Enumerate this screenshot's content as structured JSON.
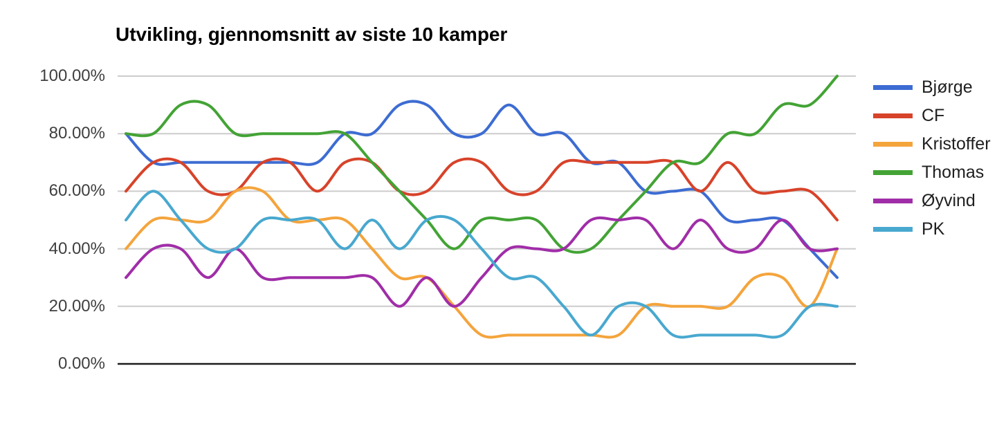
{
  "chart_data": {
    "type": "line",
    "curve": "smooth",
    "title": "Utvikling, gjennomsnitt av siste 10 kamper",
    "xlabel": "",
    "ylabel": "",
    "ylim": [
      0,
      100
    ],
    "grid": true,
    "legend_position": "right",
    "x_axis": {
      "labels_visible": false,
      "points": 27
    },
    "y_ticks": [
      "100.00%",
      "80.00%",
      "60.00%",
      "40.00%",
      "20.00%",
      "0.00%"
    ],
    "colors": {
      "gridline": "#cccccc",
      "axis_line": "#1c1c1c",
      "tick_label": "#3f3f3f",
      "legend_label": "#1f1f1f",
      "title": "#000000"
    },
    "series": [
      {
        "name": "Bjørge",
        "color": "#3d6cd2",
        "values": [
          80,
          70,
          70,
          70,
          70,
          70,
          70,
          70,
          80,
          80,
          90,
          90,
          80,
          80,
          90,
          80,
          80,
          70,
          70,
          60,
          60,
          60,
          50,
          50,
          50,
          40,
          30
        ]
      },
      {
        "name": "CF",
        "color": "#d7432a",
        "values": [
          60,
          70,
          70,
          60,
          60,
          70,
          70,
          60,
          70,
          70,
          60,
          60,
          70,
          70,
          60,
          60,
          70,
          70,
          70,
          70,
          70,
          60,
          70,
          60,
          60,
          60,
          50
        ]
      },
      {
        "name": "Kristoffer",
        "color": "#f4a43c",
        "values": [
          40,
          50,
          50,
          50,
          60,
          60,
          50,
          50,
          50,
          40,
          30,
          30,
          20,
          10,
          10,
          10,
          10,
          10,
          10,
          20,
          20,
          20,
          20,
          30,
          30,
          20,
          40
        ]
      },
      {
        "name": "Thomas",
        "color": "#43a335",
        "values": [
          80,
          80,
          90,
          90,
          80,
          80,
          80,
          80,
          80,
          70,
          60,
          50,
          40,
          50,
          50,
          50,
          40,
          40,
          50,
          60,
          70,
          70,
          80,
          80,
          90,
          90,
          100
        ]
      },
      {
        "name": "Øyvind",
        "color": "#a02da8",
        "values": [
          30,
          40,
          40,
          30,
          40,
          30,
          30,
          30,
          30,
          30,
          20,
          30,
          20,
          30,
          40,
          40,
          40,
          50,
          50,
          50,
          40,
          50,
          40,
          40,
          50,
          40,
          40
        ]
      },
      {
        "name": "PK",
        "color": "#48a8cf",
        "values": [
          50,
          60,
          50,
          40,
          40,
          50,
          50,
          50,
          40,
          50,
          40,
          50,
          50,
          40,
          30,
          30,
          20,
          10,
          20,
          20,
          10,
          10,
          10,
          10,
          10,
          20,
          20
        ]
      }
    ]
  }
}
